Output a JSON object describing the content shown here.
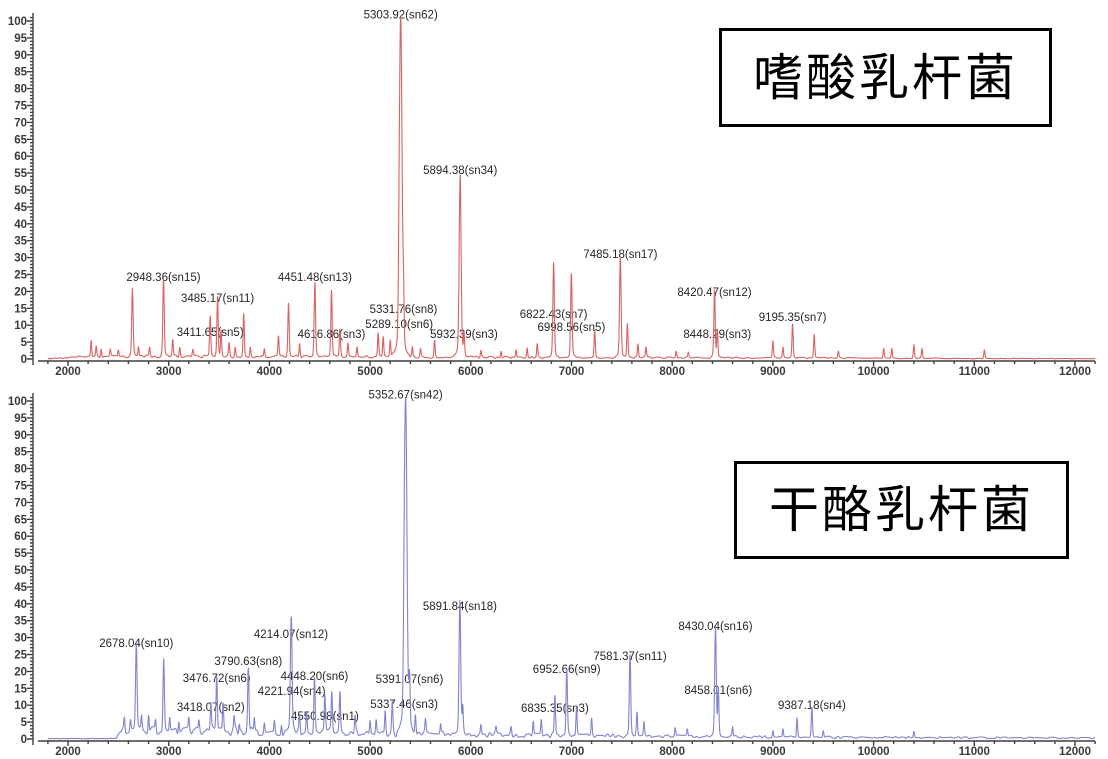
{
  "figure": {
    "description_visible_text_only": true,
    "background": "#ffffff"
  },
  "chart_data": [
    {
      "type": "line",
      "subtype": "mass-spectrum",
      "annotation_box": {
        "text": "嗜酸乳杆菌"
      },
      "trace_color": "#d96262",
      "axis_color": "#3f3f3f",
      "xlim": [
        1800,
        12200
      ],
      "ylim": [
        0,
        100
      ],
      "x_major_ticks": [
        2000,
        3000,
        4000,
        5000,
        6000,
        7000,
        8000,
        9000,
        10000,
        11000,
        12000
      ],
      "x_minor_step": 200,
      "y_major_step": 5,
      "y_minor_step": 1,
      "y_tick_labels": [
        "0",
        "5",
        "10",
        "15",
        "20",
        "25",
        "30",
        "35",
        "40",
        "45",
        "50",
        "55",
        "60",
        "65",
        "70",
        "75",
        "80",
        "85",
        "90",
        "95",
        "100"
      ],
      "seed": 7,
      "baseline": [
        [
          1800,
          0.1
        ],
        [
          2060,
          0.5
        ],
        [
          2600,
          0.7
        ],
        [
          5000,
          0.6
        ],
        [
          6500,
          0.5
        ],
        [
          8000,
          0.4
        ],
        [
          9600,
          0.3
        ],
        [
          10700,
          0.15
        ],
        [
          12200,
          0.1
        ]
      ],
      "labeled_peaks": [
        {
          "label": "2948.36(sn15)",
          "mz": 2948.36,
          "intensity": 23,
          "label_level": 23.1
        },
        {
          "label": "3411.65(sn5)",
          "mz": 3411.65,
          "intensity": 12,
          "label_level": 6.8
        },
        {
          "label": "3485.17(sn11)",
          "mz": 3485.17,
          "intensity": 18,
          "label_level": 16.9
        },
        {
          "label": "4451.48(sn13)",
          "mz": 4451.48,
          "intensity": 22,
          "label_level": 23.1
        },
        {
          "label": "4616.86(sn3)",
          "mz": 4616.86,
          "intensity": 20,
          "label_level": 6.2
        },
        {
          "label": "5289.10(sn6)",
          "mz": 5289.1,
          "intensity": 8,
          "label_level": 9.2
        },
        {
          "label": "5303.92(sn62)",
          "mz": 5303.92,
          "intensity": 100,
          "label_level": 100.8
        },
        {
          "label": "5331.76(sn8)",
          "mz": 5331.76,
          "intensity": 13,
          "label_level": 13.6
        },
        {
          "label": "5894.38(sn34)",
          "mz": 5894.38,
          "intensity": 54,
          "label_level": 54.7
        },
        {
          "label": "5932.39(sn3)",
          "mz": 5932.39,
          "intensity": 6,
          "label_level": 6.2
        },
        {
          "label": "6822.43(sn7)",
          "mz": 6822.43,
          "intensity": 28,
          "label_level": 12.1
        },
        {
          "label": "6998.56(sn5)",
          "mz": 6998.56,
          "intensity": 25,
          "label_level": 8.3
        },
        {
          "label": "7485.18(sn17)",
          "mz": 7485.18,
          "intensity": 30,
          "label_level": 29.9
        },
        {
          "label": "8420.47(sn12)",
          "mz": 8420.47,
          "intensity": 20,
          "label_level": 18.6
        },
        {
          "label": "8448.29(sn3)",
          "mz": 8448.29,
          "intensity": 8,
          "label_level": 6.2
        },
        {
          "label": "9195.35(sn7)",
          "mz": 9195.35,
          "intensity": 10,
          "label_level": 11.2
        }
      ],
      "minor_peaks": [
        [
          2230,
          5
        ],
        [
          2280,
          3
        ],
        [
          2330,
          2.5
        ],
        [
          2420,
          2
        ],
        [
          2500,
          2
        ],
        [
          2640,
          20
        ],
        [
          2700,
          3
        ],
        [
          2810,
          2.5
        ],
        [
          3040,
          5
        ],
        [
          3110,
          3
        ],
        [
          3240,
          2
        ],
        [
          3520,
          8
        ],
        [
          3600,
          4
        ],
        [
          3660,
          3
        ],
        [
          3745,
          13
        ],
        [
          3810,
          3
        ],
        [
          3950,
          2.5
        ],
        [
          4090,
          6
        ],
        [
          4190,
          16
        ],
        [
          4300,
          4
        ],
        [
          4700,
          8
        ],
        [
          4780,
          4
        ],
        [
          4870,
          3
        ],
        [
          5080,
          7
        ],
        [
          5130,
          6
        ],
        [
          5200,
          5
        ],
        [
          5420,
          3
        ],
        [
          5500,
          2.5
        ],
        [
          5640,
          5
        ],
        [
          6100,
          2
        ],
        [
          6300,
          2
        ],
        [
          6450,
          2.5
        ],
        [
          6560,
          3
        ],
        [
          6660,
          4
        ],
        [
          7230,
          8
        ],
        [
          7555,
          10
        ],
        [
          7660,
          4
        ],
        [
          7740,
          3
        ],
        [
          8040,
          2
        ],
        [
          8160,
          1.5
        ],
        [
          9000,
          5
        ],
        [
          9100,
          3
        ],
        [
          9410,
          7
        ],
        [
          9650,
          2
        ],
        [
          10100,
          3
        ],
        [
          10180,
          3
        ],
        [
          10400,
          4
        ],
        [
          10480,
          3
        ],
        [
          11100,
          2.5
        ]
      ]
    },
    {
      "type": "line",
      "subtype": "mass-spectrum",
      "annotation_box": {
        "text": "干酪乳杆菌"
      },
      "trace_color": "#8084cd",
      "axis_color": "#3f3f3f",
      "xlim": [
        1800,
        12200
      ],
      "ylim": [
        0,
        100
      ],
      "x_major_ticks": [
        2000,
        3000,
        4000,
        5000,
        6000,
        7000,
        8000,
        9000,
        10000,
        11000,
        12000
      ],
      "x_minor_step": 200,
      "y_major_step": 5,
      "y_minor_step": 1,
      "y_tick_labels": [
        "0",
        "5",
        "10",
        "15",
        "20",
        "25",
        "30",
        "35",
        "40",
        "45",
        "50",
        "55",
        "60",
        "65",
        "70",
        "75",
        "80",
        "85",
        "90",
        "95",
        "100"
      ],
      "seed": 13,
      "baseline": [
        [
          1800,
          0.1
        ],
        [
          2480,
          0.15
        ],
        [
          2520,
          2.2
        ],
        [
          3000,
          2.2
        ],
        [
          5000,
          1.8
        ],
        [
          6000,
          1.2
        ],
        [
          7000,
          1.0
        ],
        [
          8000,
          0.8
        ],
        [
          9600,
          0.5
        ],
        [
          12200,
          0.3
        ]
      ],
      "labeled_peaks": [
        {
          "label": "2678.04(sn10)",
          "mz": 2678.04,
          "intensity": 26,
          "label_level": 27.2
        },
        {
          "label": "3418.07(sn2)",
          "mz": 3418.07,
          "intensity": 8,
          "label_level": 8.3
        },
        {
          "label": "3476.72(sn6)",
          "mz": 3476.72,
          "intensity": 16,
          "label_level": 16.9
        },
        {
          "label": "3790.63(sn8)",
          "mz": 3790.63,
          "intensity": 20,
          "label_level": 21.9
        },
        {
          "label": "4214.07(sn12)",
          "mz": 4214.07,
          "intensity": 26,
          "label_level": 29.9
        },
        {
          "label": "4221.94(sn4)",
          "mz": 4221.94,
          "intensity": 14,
          "label_level": 13.0
        },
        {
          "label": "4448.20(sn6)",
          "mz": 4448.2,
          "intensity": 17,
          "label_level": 17.5
        },
        {
          "label": "4550.98(sn1)",
          "mz": 4550.98,
          "intensity": 10,
          "label_level": 5.6
        },
        {
          "label": "5337.46(sn3)",
          "mz": 5337.46,
          "intensity": 10,
          "label_level": 9.2
        },
        {
          "label": "5352.67(sn42)",
          "mz": 5352.67,
          "intensity": 100,
          "label_level": 100.8
        },
        {
          "label": "5391.07(sn6)",
          "mz": 5391.07,
          "intensity": 15,
          "label_level": 16.6
        },
        {
          "label": "5891.84(sn18)",
          "mz": 5891.84,
          "intensity": 40,
          "label_level": 38.2
        },
        {
          "label": "6835.35(sn3)",
          "mz": 6835.35,
          "intensity": 12,
          "label_level": 8.0
        },
        {
          "label": "6952.66(sn9)",
          "mz": 6952.66,
          "intensity": 20,
          "label_level": 19.5
        },
        {
          "label": "7581.37(sn11)",
          "mz": 7581.37,
          "intensity": 24,
          "label_level": 23.4
        },
        {
          "label": "8430.04(sn16)",
          "mz": 8430.04,
          "intensity": 32,
          "label_level": 32.2
        },
        {
          "label": "8458.01(sn6)",
          "mz": 8458.01,
          "intensity": 14,
          "label_level": 13.3
        },
        {
          "label": "9387.18(sn4)",
          "mz": 9387.18,
          "intensity": 9,
          "label_level": 8.9
        }
      ],
      "minor_peaks": [
        [
          2560,
          4
        ],
        [
          2620,
          3
        ],
        [
          2730,
          4
        ],
        [
          2800,
          5
        ],
        [
          2870,
          3
        ],
        [
          2950,
          22
        ],
        [
          3010,
          4
        ],
        [
          3100,
          4
        ],
        [
          3200,
          3
        ],
        [
          3300,
          3
        ],
        [
          3540,
          8
        ],
        [
          3650,
          4
        ],
        [
          3700,
          3
        ],
        [
          3850,
          4
        ],
        [
          3950,
          3
        ],
        [
          4050,
          4
        ],
        [
          4120,
          3
        ],
        [
          4300,
          5
        ],
        [
          4370,
          6
        ],
        [
          4620,
          12
        ],
        [
          4700,
          12
        ],
        [
          4850,
          5
        ],
        [
          5000,
          4
        ],
        [
          5060,
          4
        ],
        [
          5150,
          7
        ],
        [
          5220,
          9
        ],
        [
          5450,
          6
        ],
        [
          5550,
          4
        ],
        [
          5700,
          3
        ],
        [
          5920,
          8
        ],
        [
          6100,
          3
        ],
        [
          6250,
          2
        ],
        [
          6400,
          2
        ],
        [
          6620,
          4
        ],
        [
          6700,
          5
        ],
        [
          7050,
          9
        ],
        [
          7200,
          5
        ],
        [
          7650,
          7
        ],
        [
          7720,
          4
        ],
        [
          8030,
          2.5
        ],
        [
          8150,
          2
        ],
        [
          8600,
          3
        ],
        [
          9000,
          2
        ],
        [
          9100,
          2.5
        ],
        [
          9240,
          6
        ],
        [
          9500,
          2
        ],
        [
          10400,
          2
        ]
      ]
    }
  ]
}
